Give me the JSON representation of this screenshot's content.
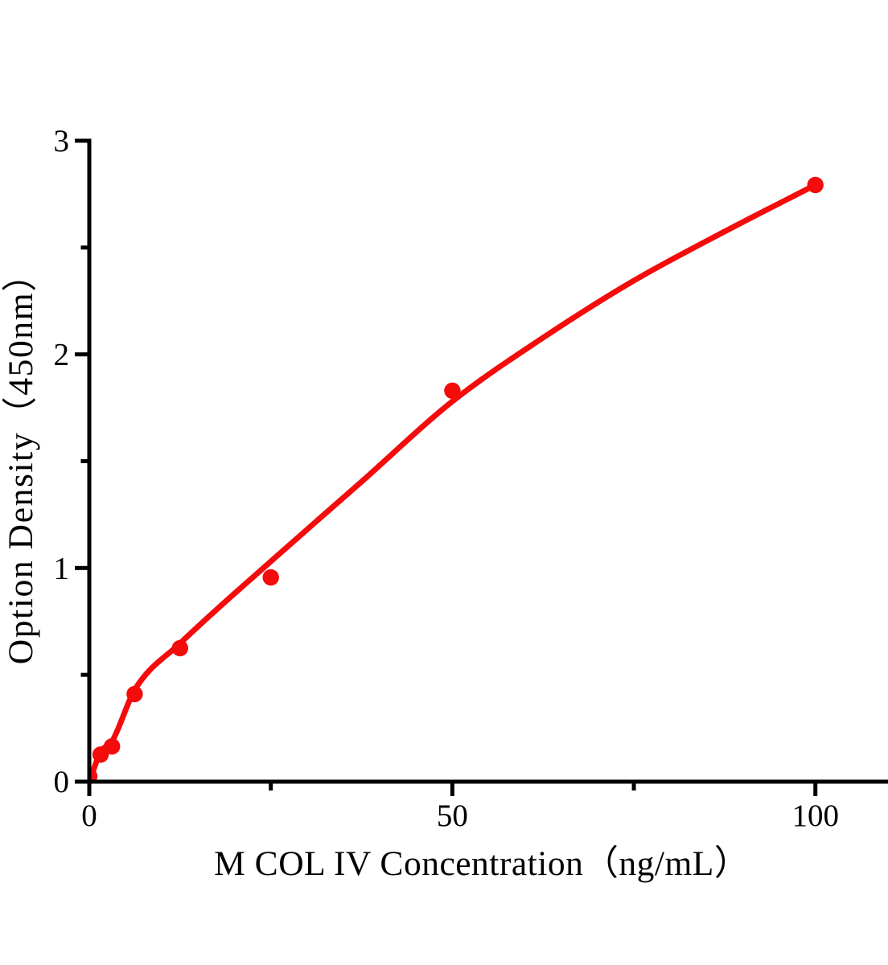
{
  "chart_data": {
    "type": "scatter",
    "title": "",
    "xlabel": "M COL IV Concentration（ng/mL）",
    "ylabel": "Option Density（450nm）",
    "x": [
      0,
      1.5625,
      3.125,
      6.25,
      12.5,
      25,
      50,
      100
    ],
    "y": [
      0.025,
      0.127,
      0.165,
      0.41,
      0.625,
      0.956,
      1.83,
      2.793
    ],
    "fit_curve_points": [
      [
        0,
        0.0
      ],
      [
        1.5625,
        0.139
      ],
      [
        3.125,
        0.188
      ],
      [
        6.25,
        0.429
      ],
      [
        12.5,
        0.647
      ],
      [
        25,
        1.031
      ],
      [
        37.5,
        1.404
      ],
      [
        50,
        1.78
      ],
      [
        62.5,
        2.078
      ],
      [
        75,
        2.345
      ],
      [
        87.5,
        2.575
      ],
      [
        100,
        2.793
      ]
    ],
    "xlim": [
      0,
      110
    ],
    "ylim": [
      0,
      3
    ],
    "x_major_ticks": [
      0,
      50,
      100
    ],
    "x_major_tick_labels": [
      "0",
      "50",
      "100"
    ],
    "x_minor_ticks": [
      25,
      75
    ],
    "y_major_ticks": [
      0,
      1,
      2,
      3
    ],
    "y_major_tick_labels": [
      "0",
      "1",
      "2",
      "3"
    ],
    "y_minor_ticks": [
      0.5,
      1.5,
      2.5
    ],
    "grid": false,
    "legend": null,
    "series_color": "#f40b0b",
    "axis_color": "#000000"
  }
}
